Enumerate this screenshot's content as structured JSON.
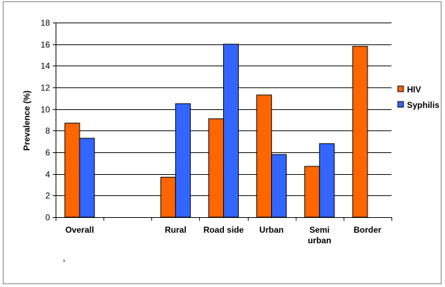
{
  "chart_data": {
    "type": "bar",
    "ylabel": "Prevalence (%)",
    "xlabel": "",
    "ylim": [
      0,
      18
    ],
    "ytick_step": 2,
    "yticks": [
      "0",
      "2",
      "4",
      "6",
      "8",
      "10",
      "12",
      "14",
      "16",
      "18"
    ],
    "grid": true,
    "legend": "right",
    "categories": [
      "Overall",
      "",
      "Rural",
      "Road side",
      "Urban",
      "Semi\nurban",
      "Border"
    ],
    "series": [
      {
        "name": "HIV",
        "color": "#ff6600",
        "values": [
          8.7,
          null,
          3.7,
          9.1,
          11.3,
          4.7,
          15.8
        ]
      },
      {
        "name": "Syphilis",
        "color": "#3366ff",
        "values": [
          7.3,
          null,
          10.5,
          16.0,
          5.8,
          6.8,
          null
        ]
      }
    ]
  },
  "note": ","
}
